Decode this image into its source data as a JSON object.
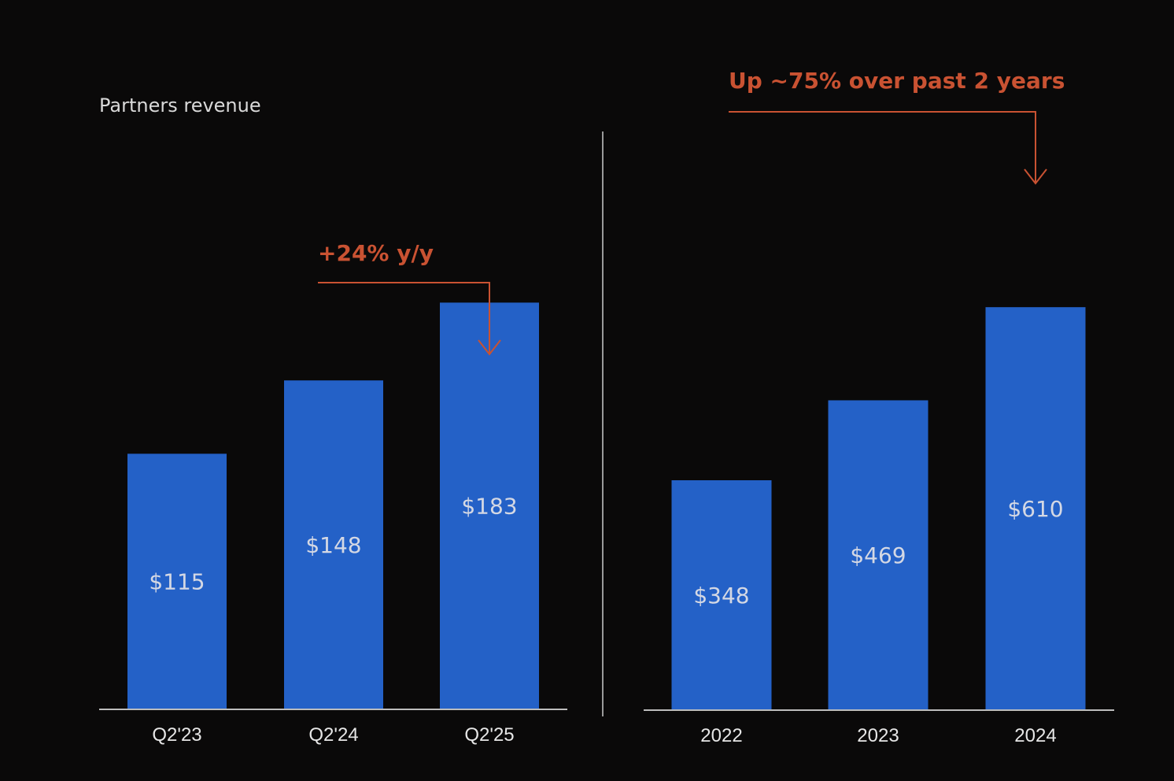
{
  "colors": {
    "background": "#0a0909",
    "bar": "#2461c7",
    "accent": "#c95232",
    "axis": "#bdbdbd",
    "divider": "#9a9a9a"
  },
  "chart_data": [
    {
      "type": "bar",
      "title": "Partners revenue",
      "categories": [
        "Q2'23",
        "Q2'24",
        "Q2'25"
      ],
      "values": [
        115,
        148,
        183
      ],
      "value_labels": [
        "$115",
        "$148",
        "$183"
      ],
      "ylim": [
        0,
        260
      ],
      "xlabel": "",
      "ylabel": "",
      "grid": false,
      "annotation": {
        "text": "+24% y/y",
        "target_category": "Q2'25"
      }
    },
    {
      "type": "bar",
      "title": "",
      "categories": [
        "2022",
        "2023",
        "2024"
      ],
      "values": [
        348,
        469,
        610
      ],
      "value_labels": [
        "$348",
        "$469",
        "$610"
      ],
      "ylim": [
        0,
        870
      ],
      "xlabel": "",
      "ylabel": "",
      "grid": false,
      "annotation": {
        "text": "Up ~75% over past 2 years",
        "target_category": "2024"
      }
    }
  ]
}
